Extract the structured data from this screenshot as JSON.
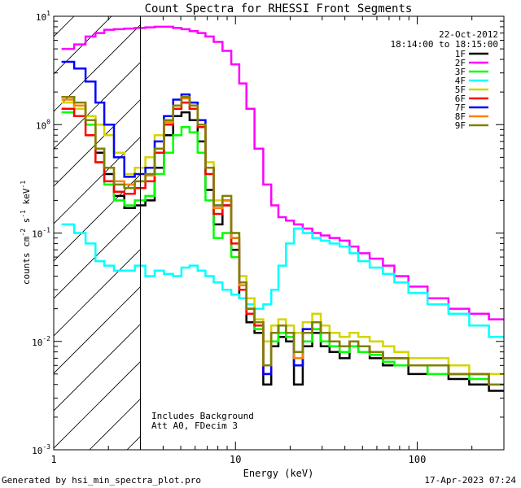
{
  "chart_data": {
    "type": "line",
    "title": "Count Spectra for RHESSI Front Segments",
    "xlabel": "Energy (keV)",
    "ylabel_parts": [
      "counts cm",
      "-2",
      " s",
      "-1",
      " keV",
      "-1"
    ],
    "xscale": "log",
    "yscale": "log",
    "xlim": [
      1,
      300
    ],
    "ylim": [
      0.001,
      10
    ],
    "x_ticks": [
      {
        "value": 1,
        "label": "1"
      },
      {
        "value": 10,
        "label": "10"
      },
      {
        "value": 100,
        "label": "100"
      }
    ],
    "y_ticks": [
      {
        "value": 0.001,
        "base": "10",
        "exp": "-3"
      },
      {
        "value": 0.01,
        "base": "10",
        "exp": "-2"
      },
      {
        "value": 0.1,
        "base": "10",
        "exp": "-1"
      },
      {
        "value": 1,
        "base": "10",
        "exp": "0"
      },
      {
        "value": 10,
        "base": "10",
        "exp": "1"
      }
    ],
    "date": "22-Oct-2012",
    "time_range": "18:14:00 to 18:15:00",
    "attenuator_marker_keV": 3,
    "annotations": [
      "Includes Background",
      "Att A0, FDecim 3"
    ],
    "series": [
      {
        "name": "1F",
        "color": "#000000",
        "values": [
          1.8,
          1.5,
          1.2,
          0.55,
          0.35,
          0.22,
          0.17,
          0.18,
          0.2,
          0.4,
          0.8,
          1.2,
          1.3,
          1.1,
          0.7,
          0.25,
          0.12,
          0.18,
          0.07,
          0.025,
          0.015,
          0.012,
          0.004,
          0.009,
          0.011,
          0.01,
          0.004,
          0.009,
          0.012,
          0.009,
          0.008,
          0.007,
          0.009,
          0.008,
          0.007,
          0.006,
          0.006,
          0.005,
          0.006,
          0.0045,
          0.004,
          0.0035
        ]
      },
      {
        "name": "2F",
        "color": "#ff00ff",
        "values": [
          5,
          5.5,
          6.5,
          7,
          7.5,
          7.6,
          7.7,
          7.8,
          7.9,
          8,
          8,
          7.8,
          7.6,
          7.3,
          7,
          6.5,
          5.8,
          4.8,
          3.6,
          2.4,
          1.4,
          0.6,
          0.28,
          0.18,
          0.14,
          0.13,
          0.12,
          0.11,
          0.1,
          0.095,
          0.09,
          0.085,
          0.075,
          0.065,
          0.058,
          0.05,
          0.04,
          0.032,
          0.025,
          0.02,
          0.018,
          0.016
        ]
      },
      {
        "name": "3F",
        "color": "#00ff00",
        "values": [
          1.3,
          1.2,
          1,
          0.45,
          0.28,
          0.2,
          0.18,
          0.2,
          0.22,
          0.35,
          0.55,
          0.8,
          0.95,
          0.85,
          0.55,
          0.2,
          0.09,
          0.1,
          0.06,
          0.03,
          0.02,
          0.013,
          0.006,
          0.01,
          0.012,
          0.011,
          0.006,
          0.01,
          0.013,
          0.01,
          0.009,
          0.008,
          0.009,
          0.008,
          0.0075,
          0.0065,
          0.006,
          0.006,
          0.005,
          0.005,
          0.0045,
          0.004
        ]
      },
      {
        "name": "4F",
        "color": "#00ffff",
        "values": [
          0.12,
          0.1,
          0.08,
          0.055,
          0.05,
          0.045,
          0.045,
          0.05,
          0.04,
          0.045,
          0.042,
          0.04,
          0.048,
          0.05,
          0.045,
          0.04,
          0.035,
          0.03,
          0.027,
          0.025,
          0.022,
          0.02,
          0.022,
          0.03,
          0.05,
          0.08,
          0.11,
          0.1,
          0.09,
          0.085,
          0.08,
          0.075,
          0.065,
          0.055,
          0.048,
          0.042,
          0.035,
          0.028,
          0.022,
          0.018,
          0.014,
          0.011
        ]
      },
      {
        "name": "5F",
        "color": "#d4d400",
        "values": [
          1.6,
          1.4,
          1.2,
          1,
          0.8,
          0.55,
          0.35,
          0.4,
          0.5,
          0.8,
          1.2,
          1.5,
          1.6,
          1.4,
          1,
          0.45,
          0.2,
          0.2,
          0.1,
          0.04,
          0.025,
          0.016,
          0.01,
          0.014,
          0.016,
          0.014,
          0.012,
          0.015,
          0.018,
          0.014,
          0.012,
          0.011,
          0.012,
          0.011,
          0.01,
          0.009,
          0.008,
          0.007,
          0.007,
          0.006,
          0.005,
          0.005
        ]
      },
      {
        "name": "6F",
        "color": "#ff0000",
        "values": [
          1.4,
          1.2,
          0.8,
          0.45,
          0.3,
          0.24,
          0.23,
          0.26,
          0.3,
          0.55,
          1,
          1.4,
          1.6,
          1.4,
          0.95,
          0.35,
          0.15,
          0.18,
          0.08,
          0.03,
          0.018,
          0.014,
          0.005,
          0.012,
          0.014,
          0.012,
          0.006,
          0.012,
          0.015,
          0.012,
          0.01,
          0.009,
          0.01,
          0.009,
          0.008,
          0.007,
          0.007,
          0.006,
          0.006,
          0.005,
          0.005,
          0.004
        ]
      },
      {
        "name": "7F",
        "color": "#0000ff",
        "values": [
          3.8,
          3.3,
          2.5,
          1.6,
          1,
          0.5,
          0.33,
          0.35,
          0.4,
          0.7,
          1.2,
          1.7,
          1.9,
          1.6,
          1.1,
          0.4,
          0.18,
          0.2,
          0.09,
          0.035,
          0.02,
          0.015,
          0.005,
          0.012,
          0.014,
          0.012,
          0.006,
          0.013,
          0.015,
          0.012,
          0.01,
          0.009,
          0.01,
          0.009,
          0.008,
          0.007,
          0.007,
          0.006,
          0.006,
          0.005,
          0.005,
          0.004
        ]
      },
      {
        "name": "8F",
        "color": "#ff8000",
        "values": [
          1.7,
          1.5,
          1.1,
          0.6,
          0.4,
          0.3,
          0.28,
          0.3,
          0.34,
          0.6,
          1.05,
          1.5,
          1.75,
          1.5,
          1,
          0.4,
          0.17,
          0.2,
          0.09,
          0.033,
          0.02,
          0.015,
          0.006,
          0.012,
          0.014,
          0.012,
          0.007,
          0.012,
          0.015,
          0.012,
          0.01,
          0.009,
          0.01,
          0.009,
          0.008,
          0.007,
          0.007,
          0.006,
          0.006,
          0.005,
          0.005,
          0.004
        ]
      },
      {
        "name": "9F",
        "color": "#808000",
        "values": [
          1.8,
          1.6,
          1.1,
          0.6,
          0.4,
          0.28,
          0.26,
          0.3,
          0.35,
          0.6,
          1.1,
          1.5,
          1.8,
          1.5,
          1,
          0.4,
          0.18,
          0.22,
          0.1,
          0.035,
          0.02,
          0.015,
          0.006,
          0.012,
          0.014,
          0.012,
          0.008,
          0.012,
          0.015,
          0.012,
          0.01,
          0.009,
          0.01,
          0.009,
          0.008,
          0.007,
          0.007,
          0.006,
          0.006,
          0.005,
          0.005,
          0.004
        ]
      }
    ],
    "x": [
      1.2,
      1.4,
      1.6,
      1.8,
      2,
      2.3,
      2.6,
      3,
      3.4,
      3.8,
      4.3,
      4.8,
      5.3,
      5.9,
      6.5,
      7.2,
      8,
      9,
      10,
      11,
      12,
      13.5,
      15,
      16.5,
      18,
      20,
      22,
      25,
      28,
      31,
      35,
      40,
      45,
      50,
      60,
      70,
      80,
      100,
      130,
      170,
      220,
      280
    ]
  },
  "footer": {
    "generated_by": "Generated by hsi_min_spectra_plot.pro",
    "timestamp": "17-Apr-2023 07:24"
  }
}
